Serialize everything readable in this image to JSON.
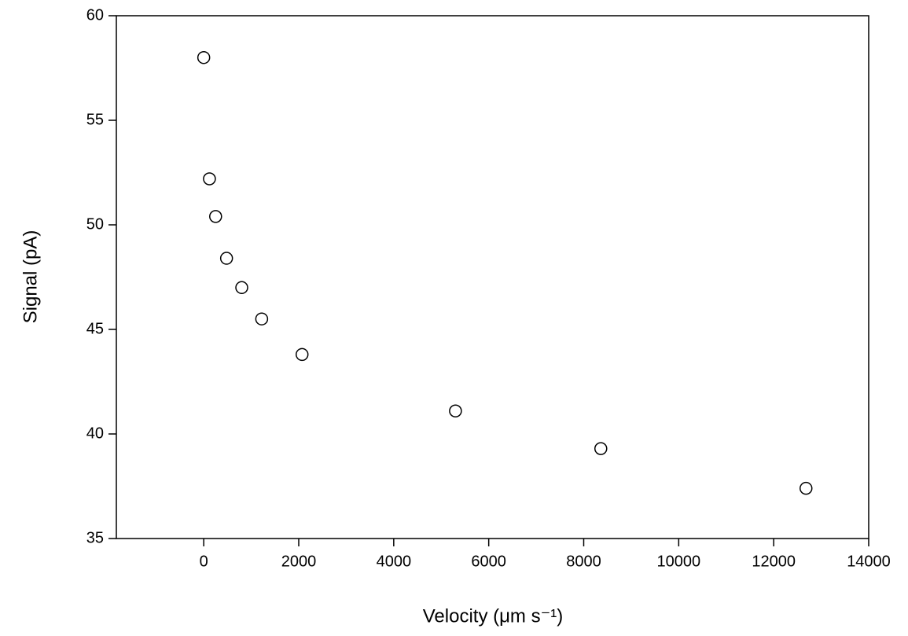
{
  "chart_data": {
    "type": "scatter",
    "x_label": "Velocity (μm s⁻¹)",
    "y_label": "Signal (pA)",
    "series": [
      {
        "color": "#000000",
        "x": [
          0,
          120,
          250,
          480,
          800,
          1220,
          2070,
          5300,
          8360,
          12680
        ],
        "values": [
          58.0,
          52.2,
          50.4,
          48.4,
          47.0,
          45.5,
          43.8,
          41.1,
          39.3,
          37.4
        ]
      }
    ],
    "xlim": [
      -1840,
      14000
    ],
    "xticks": [
      0,
      2000,
      4000,
      6000,
      8000,
      10000,
      12000,
      14000
    ],
    "ylim": [
      35,
      60
    ],
    "yticks": [
      35,
      40,
      45,
      50,
      55,
      60
    ],
    "grid": false
  }
}
